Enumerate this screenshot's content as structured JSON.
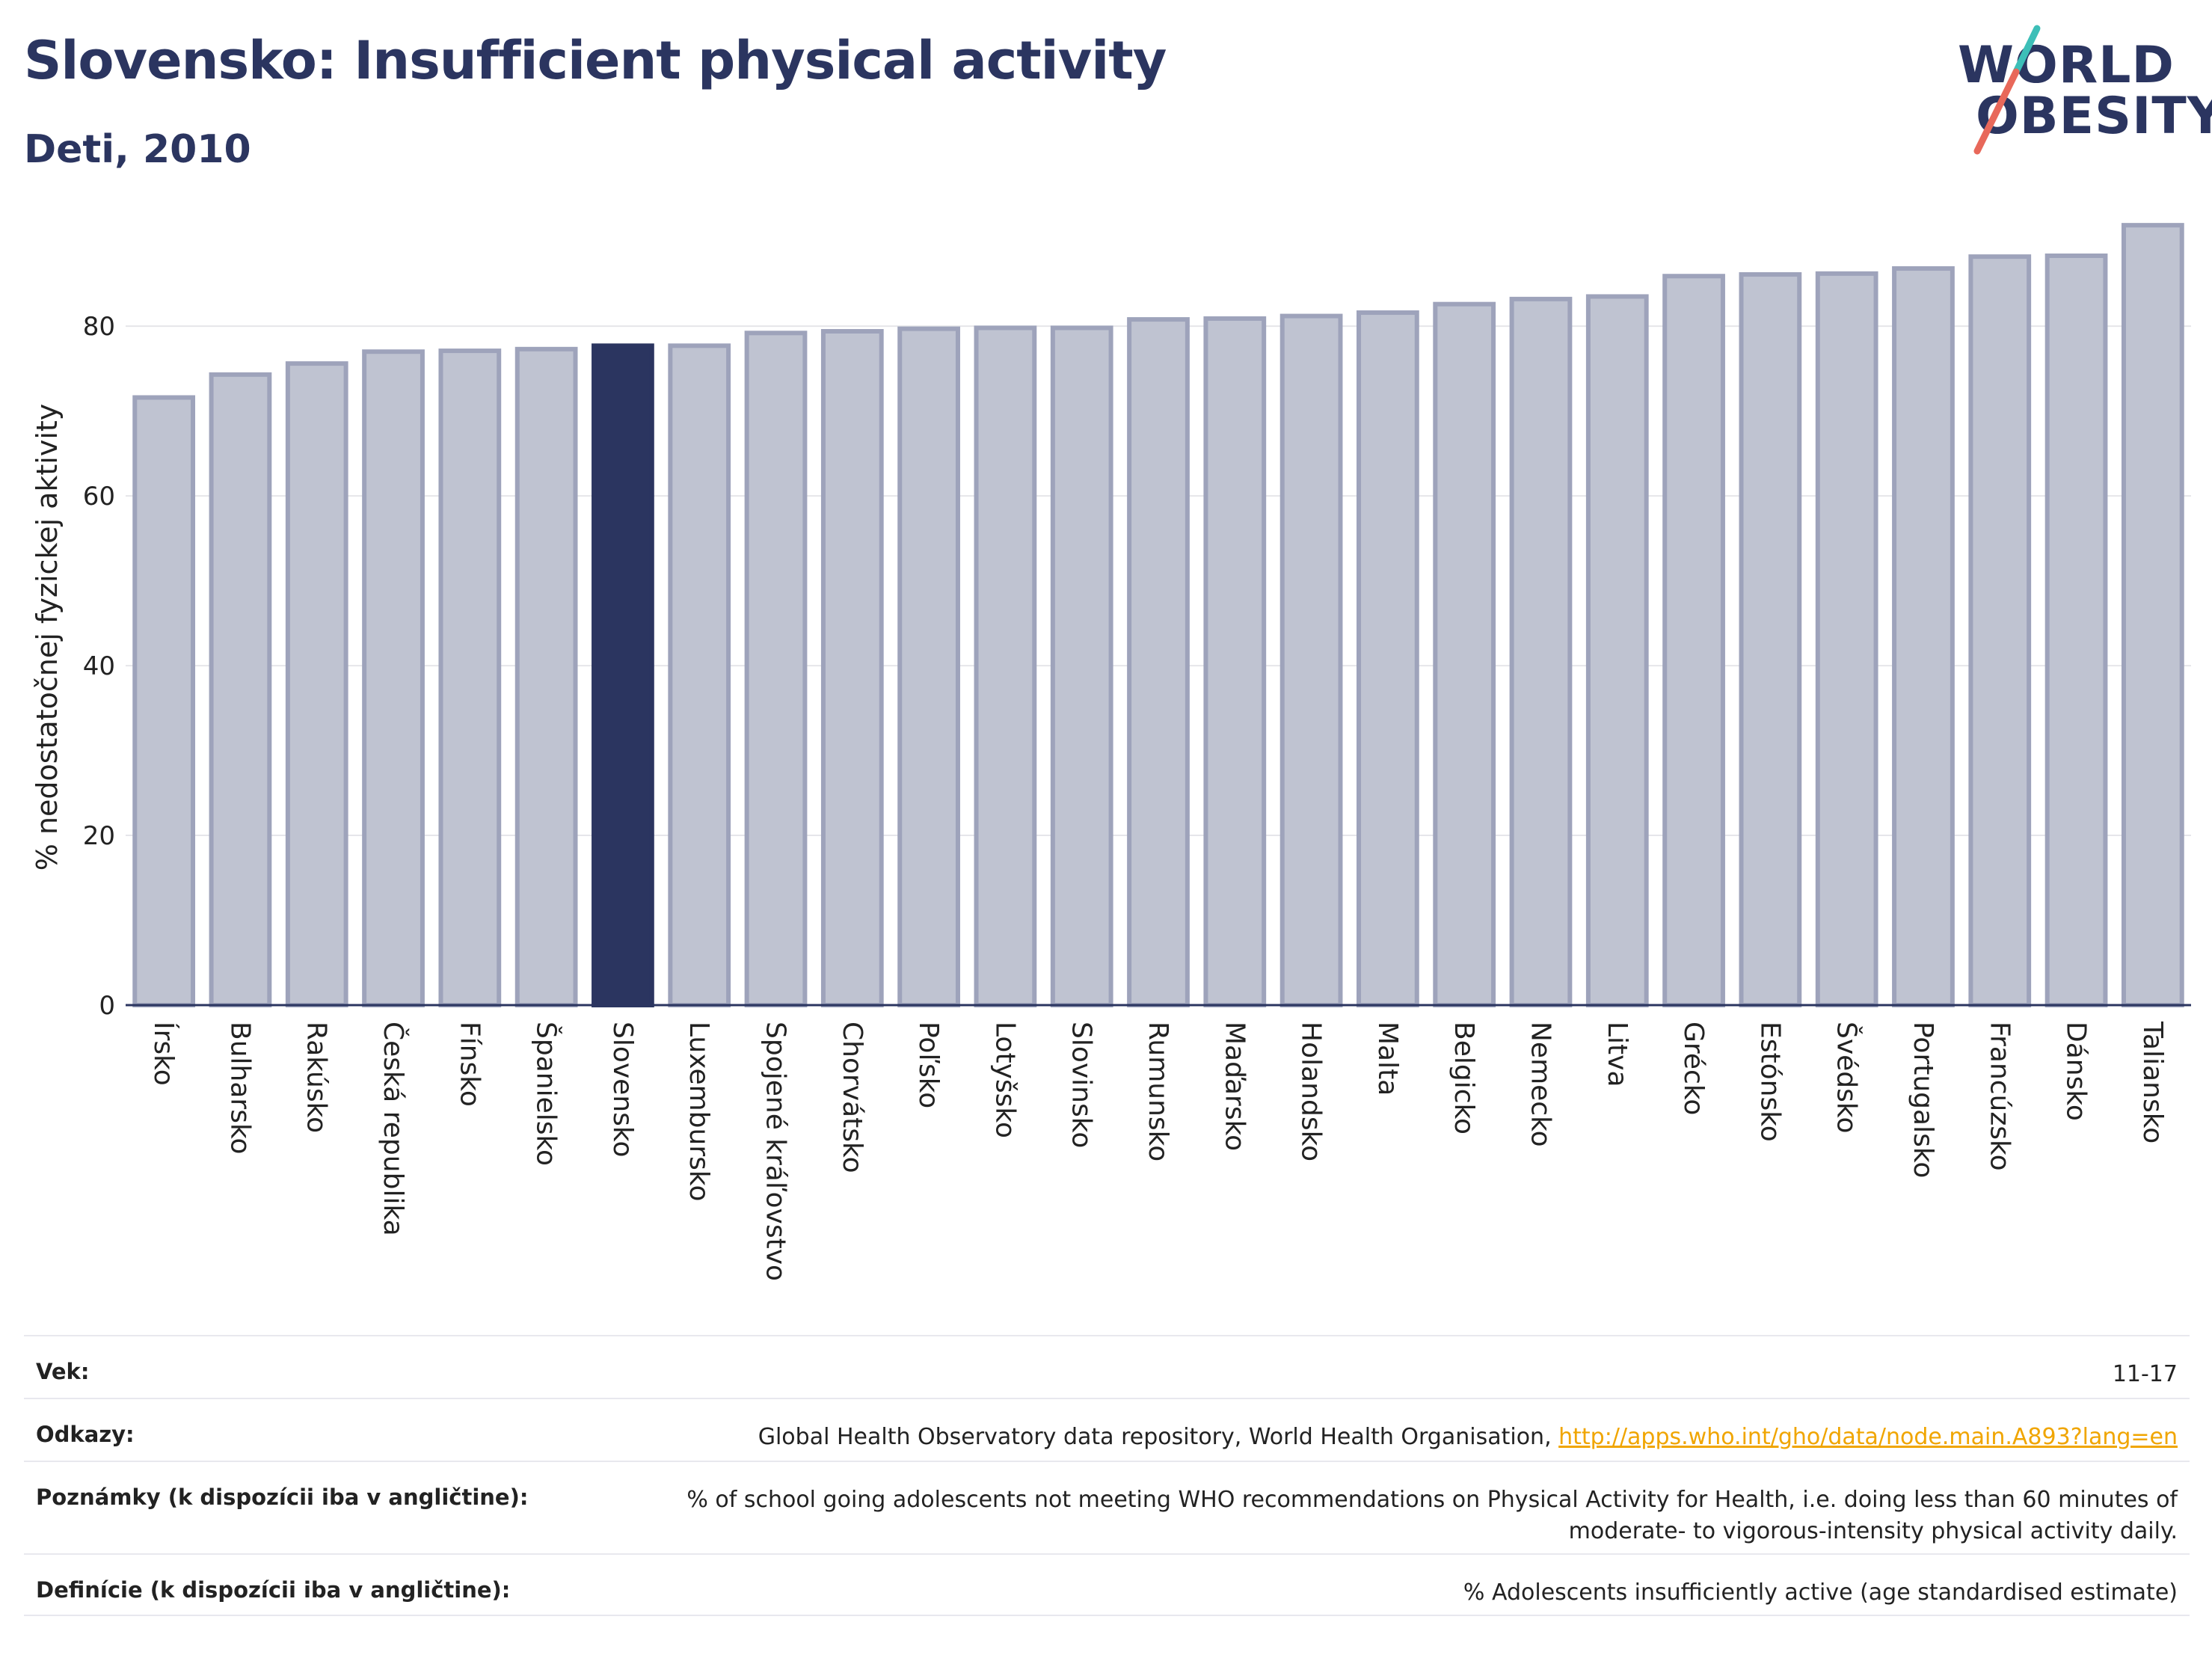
{
  "header": {
    "title": "Slovensko: Insufficient physical activity",
    "subtitle": "Deti, 2010"
  },
  "logo": {
    "line1": "WORLD",
    "line2": "OBESITY",
    "accent_colors": [
      "#3dbfb8",
      "#e8685a"
    ]
  },
  "colors": {
    "bar_default": "#bfc3d1",
    "bar_border": "#9ea3bb",
    "bar_highlight": "#2b3560",
    "title": "#2b3560",
    "link": "#f0a500"
  },
  "chart_data": {
    "type": "bar",
    "title": "",
    "xlabel": "",
    "ylabel": "% nedostatočnej fyzickej aktivity",
    "ylim": [
      0,
      92
    ],
    "yticks": [
      0,
      20,
      40,
      60,
      80
    ],
    "grid": true,
    "legend": "none",
    "highlight": "Slovensko",
    "categories": [
      "Írsko",
      "Bulharsko",
      "Rakúsko",
      "Česká republika",
      "Fínsko",
      "Španielsko",
      "Slovensko",
      "Luxembursko",
      "Spojené kráľovstvo",
      "Chorvátsko",
      "Poľsko",
      "Lotyšsko",
      "Slovinsko",
      "Rumunsko",
      "Maďarsko",
      "Holandsko",
      "Malta",
      "Belgicko",
      "Nemecko",
      "Litva",
      "Grécko",
      "Estónsko",
      "Švédsko",
      "Portugalsko",
      "Francúzsko",
      "Dánsko",
      "Taliansko"
    ],
    "values": [
      71.6,
      74.3,
      75.6,
      77.0,
      77.1,
      77.3,
      77.7,
      77.7,
      79.2,
      79.4,
      79.7,
      79.8,
      79.8,
      80.8,
      80.9,
      81.2,
      81.6,
      82.6,
      83.2,
      83.5,
      85.9,
      86.1,
      86.2,
      86.8,
      88.2,
      88.3,
      91.9
    ]
  },
  "meta": {
    "rows": [
      {
        "label": "Vek:",
        "value": "11-17"
      },
      {
        "label": "Odkazy:",
        "value": "Global Health Observatory data repository, World Health Organisation, ",
        "link": "http://apps.who.int/gho/data/node.main.A893?lang=en"
      },
      {
        "label": "Poznámky (k dispozícii iba v angličtine):",
        "value": "% of school going adolescents not meeting WHO recommendations on Physical Activity for Health, i.e. doing less than 60 minutes of moderate- to vigorous-intensity physical activity daily."
      },
      {
        "label": "Definície (k dispozícii iba v angličtine):",
        "value": "% Adolescents insufficiently active (age standardised estimate)"
      }
    ]
  }
}
